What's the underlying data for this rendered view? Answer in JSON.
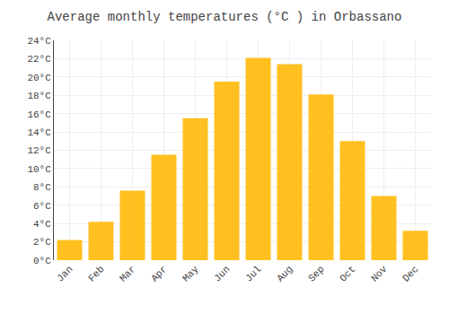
{
  "chart_data": {
    "type": "bar",
    "title": "Average monthly temperatures (°C ) in Orbassano",
    "categories": [
      "Jan",
      "Feb",
      "Mar",
      "Apr",
      "May",
      "Jun",
      "Jul",
      "Aug",
      "Sep",
      "Oct",
      "Nov",
      "Dec"
    ],
    "values": [
      2.2,
      4.2,
      7.6,
      11.5,
      15.5,
      19.5,
      22.1,
      21.4,
      18.1,
      13.0,
      7.0,
      3.2
    ],
    "color": "#FFC020",
    "ylim": [
      0,
      24
    ],
    "yticks": [
      {
        "value": 0,
        "label": "0°C"
      },
      {
        "value": 2,
        "label": "2°C"
      },
      {
        "value": 4,
        "label": "4°C"
      },
      {
        "value": 6,
        "label": "6°C"
      },
      {
        "value": 8,
        "label": "8°C"
      },
      {
        "value": 10,
        "label": "10°C"
      },
      {
        "value": 12,
        "label": "12°C"
      },
      {
        "value": 14,
        "label": "14°C"
      },
      {
        "value": 16,
        "label": "16°C"
      },
      {
        "value": 18,
        "label": "18°C"
      },
      {
        "value": 20,
        "label": "20°C"
      },
      {
        "value": 22,
        "label": "22°C"
      },
      {
        "value": 24,
        "label": "24°C"
      }
    ],
    "grid": true
  }
}
